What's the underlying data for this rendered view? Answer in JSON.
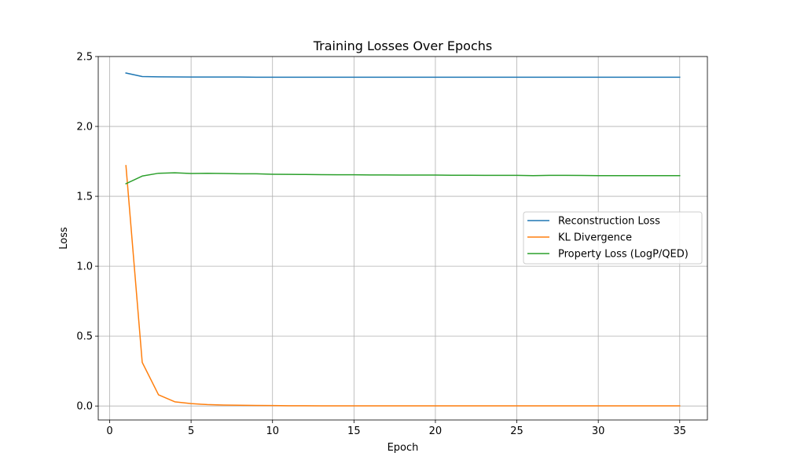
{
  "chart_data": {
    "type": "line",
    "title": "Training Losses Over Epochs",
    "xlabel": "Epoch",
    "ylabel": "Loss",
    "xlim": [
      -0.7,
      36.7
    ],
    "ylim": [
      -0.1,
      2.5
    ],
    "xticks": [
      0,
      5,
      10,
      15,
      20,
      25,
      30,
      35
    ],
    "yticks": [
      0.0,
      0.5,
      1.0,
      1.5,
      2.0,
      2.5
    ],
    "xtick_labels": [
      "0",
      "5",
      "10",
      "15",
      "20",
      "25",
      "30",
      "35"
    ],
    "ytick_labels": [
      "0.0",
      "0.5",
      "1.0",
      "1.5",
      "2.0",
      "2.5"
    ],
    "grid": true,
    "legend_position": "center-right",
    "x": [
      1,
      2,
      3,
      4,
      5,
      6,
      7,
      8,
      9,
      10,
      11,
      12,
      13,
      14,
      15,
      16,
      17,
      18,
      19,
      20,
      21,
      22,
      23,
      24,
      25,
      26,
      27,
      28,
      29,
      30,
      31,
      32,
      33,
      34,
      35
    ],
    "series": [
      {
        "name": "Reconstruction Loss",
        "color": "#1f77b4",
        "values": [
          2.382,
          2.357,
          2.355,
          2.354,
          2.353,
          2.353,
          2.353,
          2.353,
          2.352,
          2.352,
          2.352,
          2.352,
          2.352,
          2.352,
          2.352,
          2.352,
          2.352,
          2.352,
          2.352,
          2.352,
          2.352,
          2.352,
          2.352,
          2.352,
          2.352,
          2.352,
          2.352,
          2.352,
          2.352,
          2.352,
          2.352,
          2.352,
          2.352,
          2.352,
          2.352
        ]
      },
      {
        "name": "KL Divergence",
        "color": "#ff7f0e",
        "values": [
          1.72,
          0.312,
          0.08,
          0.03,
          0.017,
          0.01,
          0.007,
          0.005,
          0.004,
          0.003,
          0.002,
          0.002,
          0.001,
          0.001,
          0.001,
          0.001,
          0.001,
          0.001,
          0.001,
          0.001,
          0.001,
          0.001,
          0.001,
          0.001,
          0.001,
          0.001,
          0.001,
          0.001,
          0.001,
          0.001,
          0.001,
          0.001,
          0.001,
          0.001,
          0.001
        ]
      },
      {
        "name": "Property Loss (LogP/QED)",
        "color": "#2ca02c",
        "values": [
          1.59,
          1.645,
          1.665,
          1.668,
          1.663,
          1.665,
          1.663,
          1.661,
          1.661,
          1.658,
          1.657,
          1.656,
          1.655,
          1.654,
          1.654,
          1.653,
          1.653,
          1.652,
          1.652,
          1.652,
          1.651,
          1.651,
          1.65,
          1.65,
          1.65,
          1.648,
          1.65,
          1.65,
          1.649,
          1.648,
          1.648,
          1.648,
          1.648,
          1.648,
          1.648
        ]
      }
    ]
  }
}
